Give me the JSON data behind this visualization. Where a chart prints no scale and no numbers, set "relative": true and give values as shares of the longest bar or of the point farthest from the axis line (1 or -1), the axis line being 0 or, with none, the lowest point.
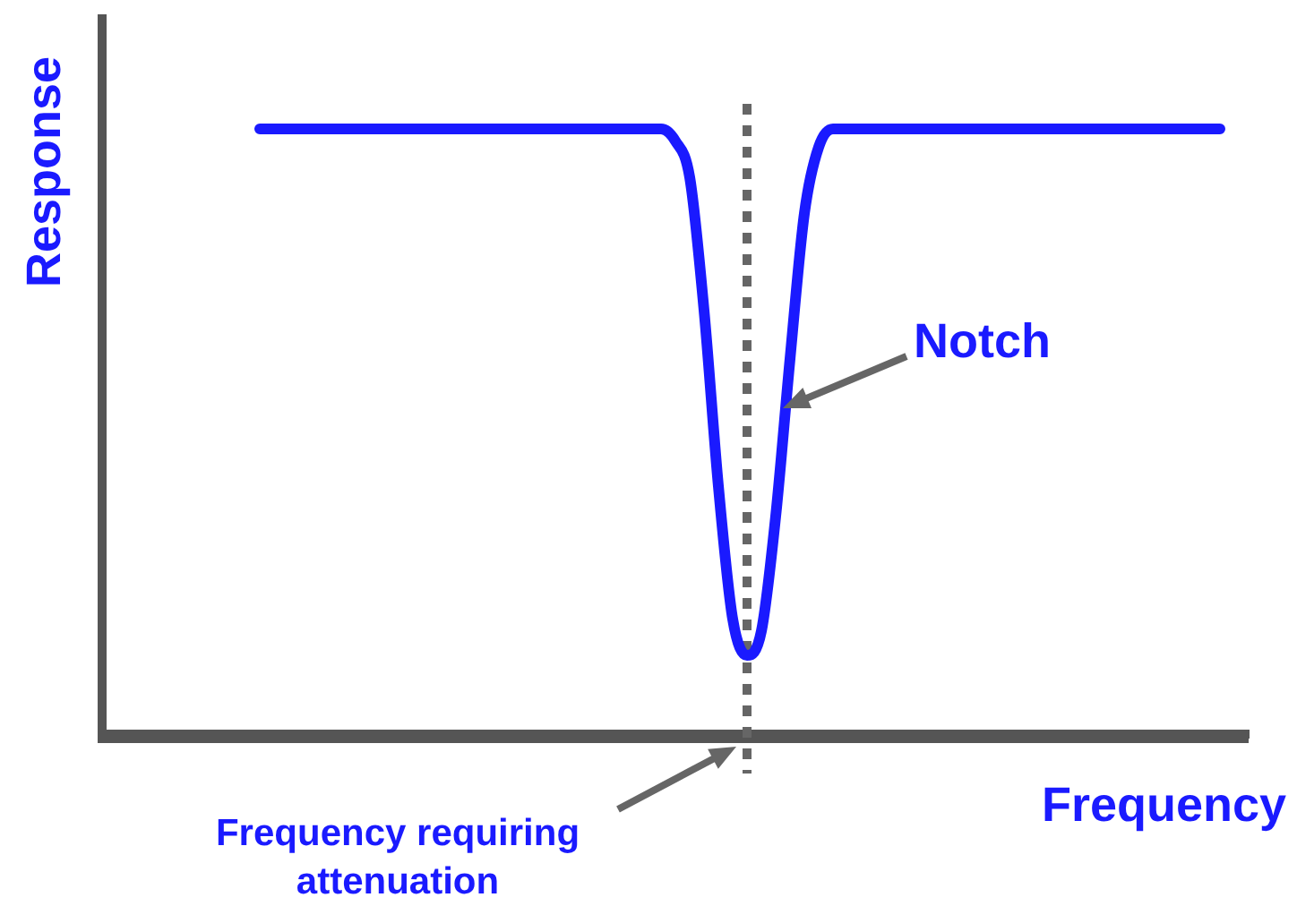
{
  "chart_data": {
    "type": "line",
    "relative": true,
    "xlabel": "Frequency",
    "ylabel": "Response",
    "marker": "none",
    "line_style": "solid",
    "legend": false,
    "categories": [
      null,
      null,
      null,
      null,
      null,
      null,
      null,
      null,
      null,
      null,
      null,
      null,
      null,
      null,
      null,
      null,
      null,
      null,
      null,
      null,
      null,
      null,
      null,
      null,
      null,
      null,
      null,
      null,
      null,
      null,
      null,
      null,
      null,
      null,
      null,
      null,
      null,
      null,
      null,
      null,
      null,
      null,
      null,
      null,
      null,
      null,
      null,
      null,
      null,
      null,
      null,
      null,
      null,
      null,
      null,
      null,
      null,
      null,
      null,
      null,
      null,
      null,
      null,
      null,
      null,
      null,
      null,
      null,
      null,
      null,
      null,
      null,
      null,
      null,
      null,
      null,
      null,
      null,
      null,
      null,
      null
    ],
    "series": [
      {
        "color": "#1a1aff",
        "values": [
          null,
          null,
          null,
          null,
          null,
          null,
          null,
          null,
          null,
          null,
          null,
          1,
          1,
          1,
          1,
          1,
          1,
          1,
          1,
          1,
          1,
          1,
          1,
          1,
          1,
          1,
          1,
          1,
          1,
          1,
          1,
          1,
          1,
          1,
          1,
          1,
          1,
          1,
          1,
          1,
          0.98,
          0.92,
          0.7,
          0.41,
          0.19,
          0.13,
          0.17,
          0.36,
          0.62,
          0.86,
          0.97,
          1,
          1,
          1,
          1,
          1,
          1,
          1,
          1,
          1,
          1,
          1,
          1,
          1,
          1,
          1,
          1,
          1,
          1,
          1,
          1,
          1,
          1,
          1,
          1,
          1,
          1,
          1,
          1,
          null,
          null
        ]
      }
    ],
    "annotations": [
      "Notch",
      "Frequency requiring attenuation"
    ]
  }
}
